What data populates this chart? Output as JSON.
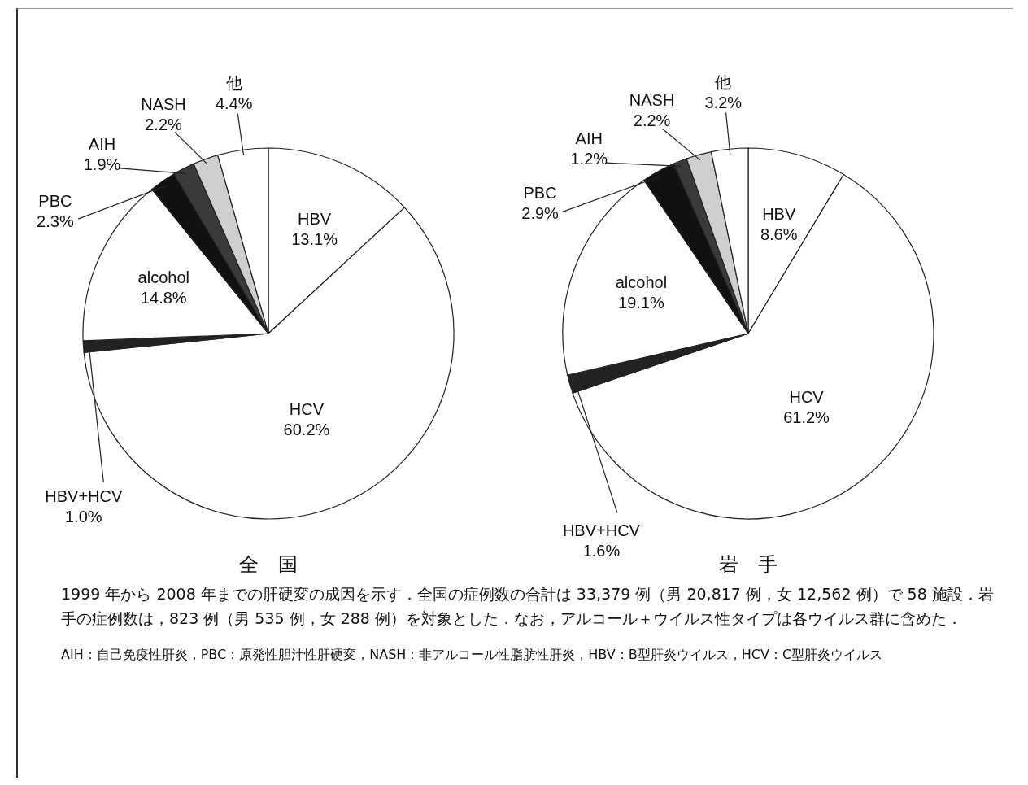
{
  "chart_data": [
    {
      "type": "pie",
      "title": "全　国",
      "categories": [
        "HBV",
        "HCV",
        "HBV+HCV",
        "alcohol",
        "PBC",
        "AIH",
        "NASH",
        "他"
      ],
      "values": [
        13.1,
        60.2,
        1.0,
        14.8,
        2.3,
        1.9,
        2.2,
        4.4
      ],
      "colors": [
        "#ffffff",
        "#ffffff",
        "#222222",
        "#ffffff",
        "#111111",
        "#3a3a3a",
        "#cfcfcf",
        "#ffffff"
      ],
      "value_labels": [
        "13.1%",
        "60.2%",
        "1.0%",
        "14.8%",
        "2.3%",
        "1.9%",
        "2.2%",
        "4.4%"
      ],
      "annotations": [
        "1999 年から 2008 年までの肝硬変の成因を示す．全国の症例数の合計は 33,379 例（男 20,817 例，女 12,562 例）で 58 施設．岩手の症例数は，823 例（男 535 例，女 288 例）を対象とした．なお，アルコール＋ウイルス性タイプは各ウイルス群に含めた．",
        "AIH：自己免疫性肝炎，PBC：原発性胆汁性肝硬変，NASH：非アルコール性脂肪性肝炎，HBV：B型肝炎ウイルス，HCV：C型肝炎ウイルス"
      ]
    },
    {
      "type": "pie",
      "title": "岩　手",
      "categories": [
        "HBV",
        "HCV",
        "HBV+HCV",
        "alcohol",
        "PBC",
        "AIH",
        "NASH",
        "他"
      ],
      "values": [
        8.6,
        61.2,
        1.6,
        19.1,
        2.9,
        1.2,
        2.2,
        3.2
      ],
      "colors": [
        "#ffffff",
        "#ffffff",
        "#222222",
        "#ffffff",
        "#111111",
        "#3a3a3a",
        "#cfcfcf",
        "#ffffff"
      ],
      "value_labels": [
        "8.6%",
        "61.2%",
        "1.6%",
        "19.1%",
        "2.9%",
        "1.2%",
        "2.2%",
        "3.2%"
      ]
    }
  ]
}
